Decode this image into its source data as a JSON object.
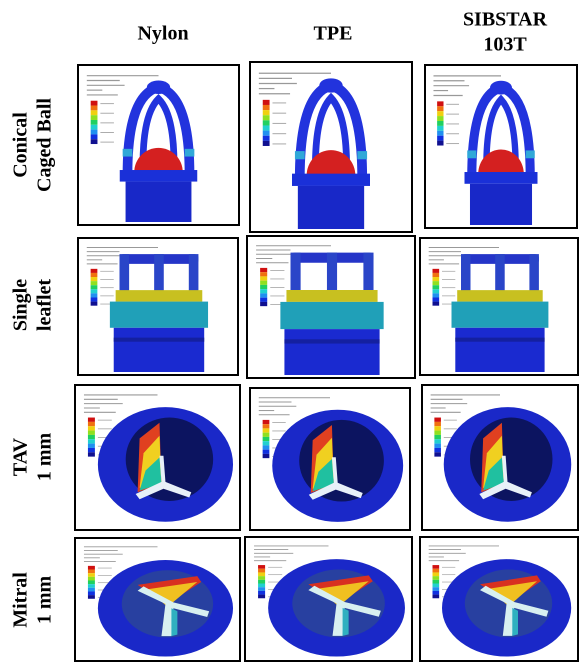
{
  "columns": [
    [
      "Nylon"
    ],
    [
      "TPE"
    ],
    [
      "SIBSTAR",
      "103T"
    ]
  ],
  "rows": [
    [
      "Conical",
      "Caged Ball"
    ],
    [
      "Single",
      "leaflet"
    ],
    [
      "TAV",
      "1 mm"
    ],
    [
      "Mitral",
      "1 mm"
    ]
  ]
}
